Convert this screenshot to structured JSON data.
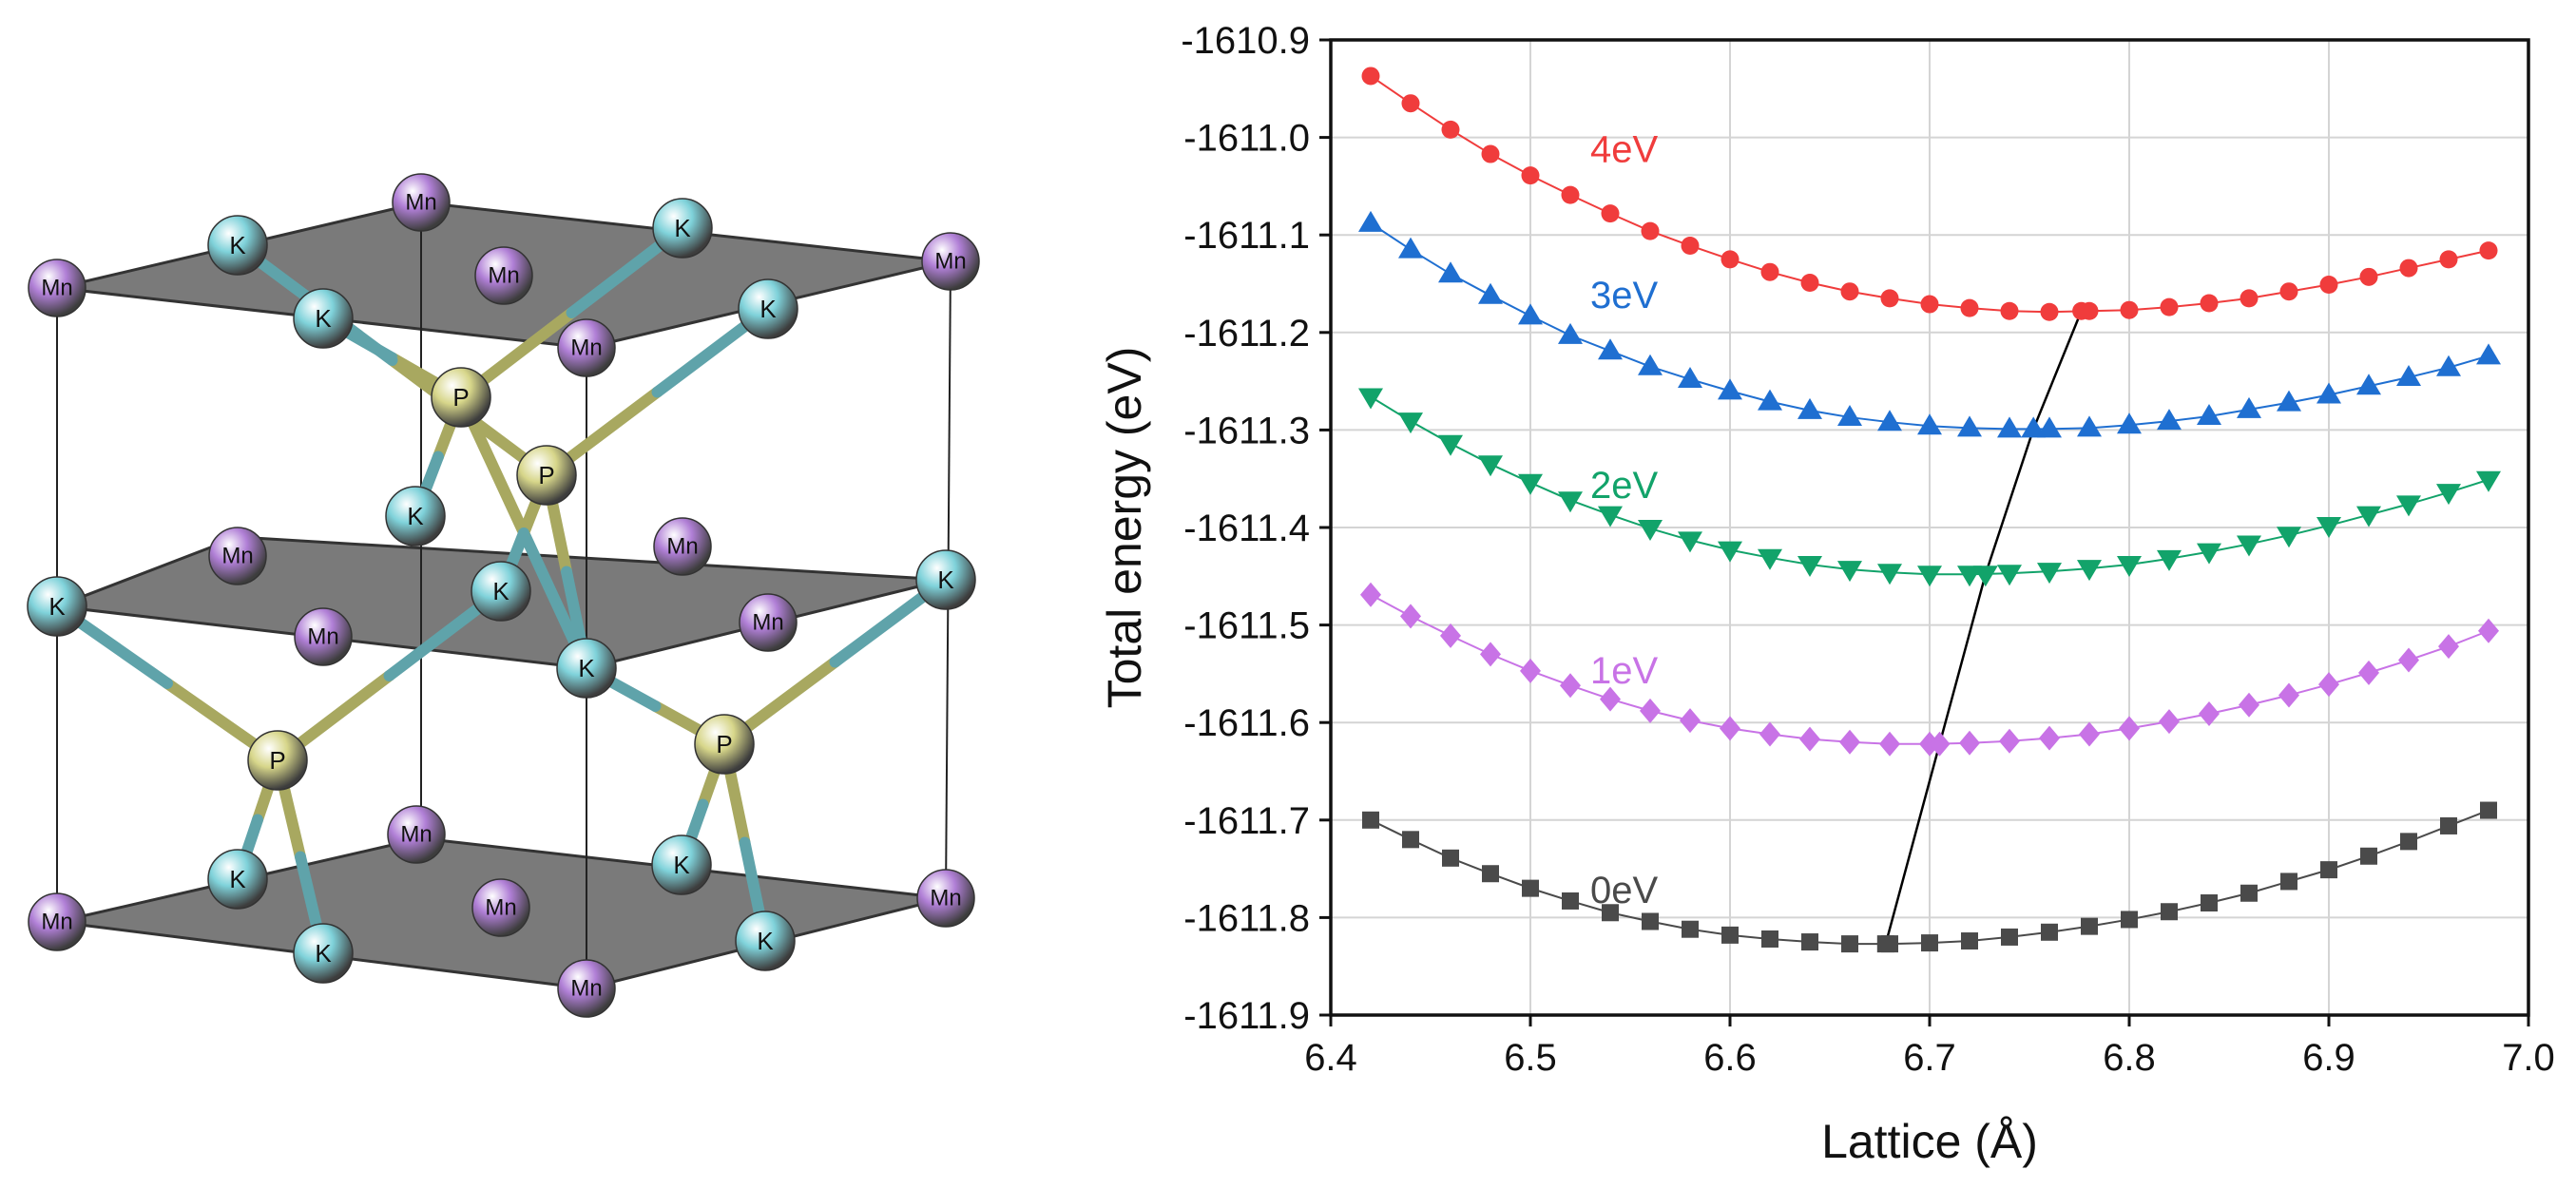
{
  "atom_labels": {
    "manganese": "Mn",
    "potassium": "K",
    "phosphorus": "P"
  },
  "colors": {
    "manganese": "#b07fd6",
    "potassium": "#7fd2da",
    "phosphorus": "#d7d68a",
    "plane": "#7a7a7a",
    "trend_line": "#000000"
  },
  "chart_data": {
    "type": "line",
    "title": "",
    "xlabel": "Lattice (Å)",
    "ylabel": "Total energy (eV)",
    "xlim": [
      6.4,
      7.0
    ],
    "ylim": [
      -1611.9,
      -1610.9
    ],
    "x_ticks": [
      "6.4",
      "6.5",
      "6.6",
      "6.7",
      "6.8",
      "6.9",
      "7.0"
    ],
    "y_ticks": [
      "-1610.9",
      "-1611.0",
      "-1611.1",
      "-1611.2",
      "-1611.3",
      "-1611.4",
      "-1611.5",
      "-1611.6",
      "-1611.7",
      "-1611.8",
      "-1611.9"
    ],
    "grid": true,
    "x": [
      6.42,
      6.44,
      6.46,
      6.48,
      6.5,
      6.52,
      6.54,
      6.56,
      6.58,
      6.6,
      6.62,
      6.64,
      6.66,
      6.68,
      6.7,
      6.72,
      6.74,
      6.76,
      6.78,
      6.8,
      6.82,
      6.84,
      6.86,
      6.88,
      6.9,
      6.92,
      6.94,
      6.96,
      6.98
    ],
    "series": [
      {
        "name": "4eV",
        "color": "#f03c3c",
        "marker": "circle",
        "values": [
          -1610.937,
          -1610.965,
          -1610.992,
          -1611.017,
          -1611.039,
          -1611.059,
          -1611.078,
          -1611.096,
          -1611.111,
          -1611.125,
          -1611.138,
          -1611.149,
          -1611.158,
          -1611.165,
          -1611.171,
          -1611.175,
          -1611.178,
          -1611.179,
          -1611.178,
          -1611.177,
          -1611.174,
          -1611.17,
          -1611.165,
          -1611.158,
          -1611.151,
          -1611.143,
          -1611.134,
          -1611.125,
          -1611.116
        ]
      },
      {
        "name": "3eV",
        "color": "#1f6fd1",
        "marker": "triangle-up",
        "values": [
          -1611.088,
          -1611.115,
          -1611.14,
          -1611.162,
          -1611.183,
          -1611.203,
          -1611.219,
          -1611.235,
          -1611.248,
          -1611.26,
          -1611.271,
          -1611.28,
          -1611.287,
          -1611.292,
          -1611.296,
          -1611.298,
          -1611.299,
          -1611.299,
          -1611.298,
          -1611.295,
          -1611.291,
          -1611.286,
          -1611.279,
          -1611.272,
          -1611.264,
          -1611.255,
          -1611.246,
          -1611.236,
          -1611.224
        ]
      },
      {
        "name": "2eV",
        "color": "#12a36a",
        "marker": "triangle-down",
        "values": [
          -1611.266,
          -1611.291,
          -1611.314,
          -1611.335,
          -1611.354,
          -1611.372,
          -1611.387,
          -1611.401,
          -1611.413,
          -1611.423,
          -1611.431,
          -1611.438,
          -1611.443,
          -1611.446,
          -1611.448,
          -1611.448,
          -1611.447,
          -1611.445,
          -1611.442,
          -1611.438,
          -1611.432,
          -1611.425,
          -1611.417,
          -1611.408,
          -1611.398,
          -1611.387,
          -1611.376,
          -1611.364,
          -1611.351
        ]
      },
      {
        "name": "1eV",
        "color": "#c873e6",
        "marker": "diamond",
        "values": [
          -1611.469,
          -1611.491,
          -1611.511,
          -1611.53,
          -1611.547,
          -1611.562,
          -1611.576,
          -1611.588,
          -1611.598,
          -1611.606,
          -1611.612,
          -1611.617,
          -1611.62,
          -1611.622,
          -1611.622,
          -1611.621,
          -1611.619,
          -1611.616,
          -1611.612,
          -1611.606,
          -1611.599,
          -1611.591,
          -1611.582,
          -1611.572,
          -1611.561,
          -1611.549,
          -1611.536,
          -1611.522,
          -1611.506
        ]
      },
      {
        "name": "0eV",
        "color": "#4a4a4a",
        "marker": "square",
        "values": [
          -1611.7,
          -1611.72,
          -1611.739,
          -1611.755,
          -1611.77,
          -1611.783,
          -1611.795,
          -1611.804,
          -1611.812,
          -1611.818,
          -1611.822,
          -1611.825,
          -1611.827,
          -1611.827,
          -1611.826,
          -1611.824,
          -1611.82,
          -1611.815,
          -1611.809,
          -1611.802,
          -1611.794,
          -1611.785,
          -1611.775,
          -1611.763,
          -1611.751,
          -1611.737,
          -1611.722,
          -1611.706,
          -1611.69
        ]
      }
    ],
    "series_labels": [
      {
        "text": "4eV",
        "x": 6.53,
        "y": -1611.025
      },
      {
        "text": "3eV",
        "x": 6.53,
        "y": -1611.175
      },
      {
        "text": "2eV",
        "x": 6.53,
        "y": -1611.37
      },
      {
        "text": "1eV",
        "x": 6.53,
        "y": -1611.56
      },
      {
        "text": "0eV",
        "x": 6.53,
        "y": -1611.785
      }
    ],
    "trend_line": {
      "x": [
        6.678,
        6.705,
        6.728,
        6.752,
        6.776
      ],
      "y": [
        -1611.827,
        -1611.622,
        -1611.448,
        -1611.299,
        -1611.178
      ]
    }
  }
}
